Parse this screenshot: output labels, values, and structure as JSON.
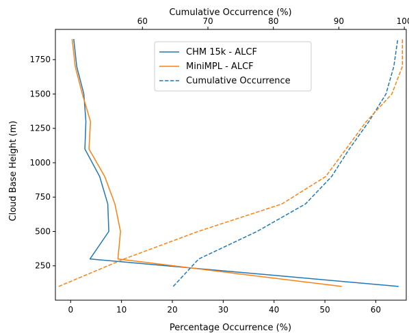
{
  "chart_data": {
    "type": "line",
    "xlabel": "Percentage Occurrence (%)",
    "ylabel": "Cloud Base Height (m)",
    "x2label": "Cumulative Occurrence (%)",
    "xlim": [
      -3,
      66
    ],
    "ylim": [
      0,
      1970
    ],
    "x2lim": [
      46.7,
      100.3
    ],
    "xticks": [
      0,
      10,
      20,
      30,
      40,
      50,
      60
    ],
    "yticks": [
      250,
      500,
      750,
      1000,
      1250,
      1500,
      1750
    ],
    "x2ticks": [
      60,
      70,
      80,
      90,
      100
    ],
    "grid": false,
    "legend": "top-center",
    "series": [
      {
        "name": "CHM 15k - ALCF",
        "axis": "bottom",
        "style": "solid",
        "color": "#1f77b4",
        "x": [
          64.5,
          3.8,
          7.5,
          7.3,
          5.7,
          2.8,
          3.0,
          2.6,
          1.2,
          0.6
        ],
        "y": [
          100,
          300,
          500,
          700,
          900,
          1100,
          1300,
          1500,
          1700,
          1900
        ]
      },
      {
        "name": "MiniMPL - ALCF",
        "axis": "bottom",
        "style": "solid",
        "color": "#ff7f0e",
        "x": [
          53.3,
          9.3,
          9.8,
          8.7,
          6.7,
          3.6,
          3.9,
          2.3,
          0.9,
          0.3
        ],
        "y": [
          100,
          300,
          500,
          700,
          900,
          1100,
          1300,
          1500,
          1700,
          1900
        ]
      },
      {
        "name": "Cumulative Occurrence",
        "axis": "top",
        "style": "dashed",
        "color": "#1f77b4",
        "x": [
          64.7,
          68.6,
          77.5,
          84.9,
          88.9,
          91.6,
          94.6,
          97.2,
          98.4,
          99.0
        ],
        "y": [
          100,
          300,
          500,
          700,
          900,
          1100,
          1300,
          1500,
          1700,
          1900
        ]
      },
      {
        "name": "",
        "axis": "top",
        "style": "dashed",
        "color": "#ff7f0e",
        "x": [
          47.2,
          57.2,
          68.5,
          81.3,
          88.0,
          91.1,
          94.2,
          98.1,
          99.7,
          99.7
        ],
        "y": [
          100,
          300,
          500,
          700,
          900,
          1100,
          1300,
          1500,
          1700,
          1900
        ]
      }
    ]
  }
}
